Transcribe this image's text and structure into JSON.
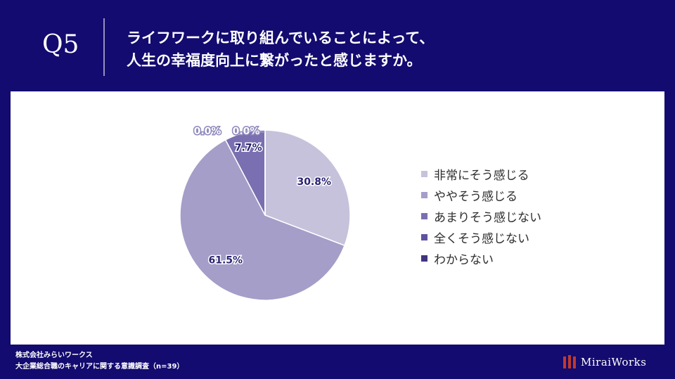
{
  "header": {
    "question_number": "Q5",
    "question_lines": [
      "ライフワークに取り組んでいることによって、",
      "人生の幸福度向上に繋がったと感じますか。"
    ]
  },
  "chart_data": {
    "type": "pie",
    "categories": [
      "非常にそう感じる",
      "ややそう感じる",
      "あまりそう感じない",
      "全くそう感じない",
      "わからない"
    ],
    "values": [
      30.8,
      61.5,
      7.7,
      0.0,
      0.0
    ],
    "labels": [
      "30.8%",
      "61.5%",
      "7.7%",
      "0.0%",
      "0.0%"
    ],
    "colors": [
      "#c6c2dc",
      "#a49ec8",
      "#7a6fb0",
      "#5f52a0",
      "#3f3580"
    ],
    "legend_position": "right",
    "start": "12 o'clock",
    "direction": "clockwise"
  },
  "footer": {
    "company": "株式会社みらいワークス",
    "survey": "大企業総合職のキャリアに関する意識調査（n=39）"
  },
  "brand": {
    "name": "MiraiWorks",
    "color": "#c0392b"
  }
}
